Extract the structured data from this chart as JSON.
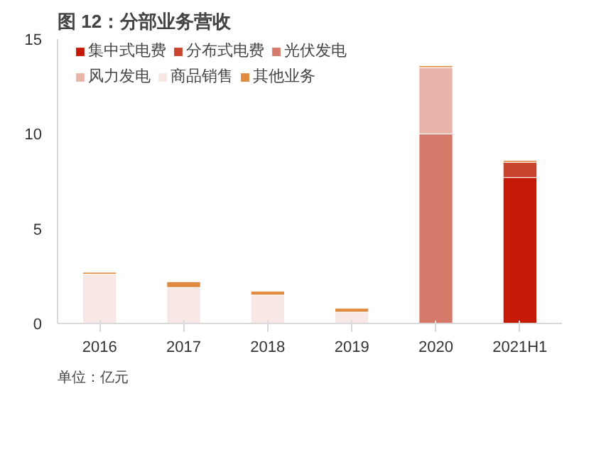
{
  "chart_data": {
    "type": "bar",
    "title": "图 12：分部业务营收",
    "stacked": true,
    "categories": [
      "2016",
      "2017",
      "2018",
      "2019",
      "2020",
      "2021H1"
    ],
    "series": [
      {
        "name": "集中式电费",
        "color": "#c41a05",
        "values": [
          null,
          null,
          null,
          null,
          null,
          7.7
        ]
      },
      {
        "name": "分布式电费",
        "color": "#c9442c",
        "values": [
          null,
          null,
          null,
          null,
          null,
          0.8
        ]
      },
      {
        "name": "光伏发电",
        "color": "#d57a6a",
        "values": [
          null,
          null,
          null,
          null,
          10.0,
          null
        ]
      },
      {
        "name": "风力发电",
        "color": "#e8b4aa",
        "values": [
          null,
          null,
          null,
          null,
          3.5,
          null
        ]
      },
      {
        "name": "商品销售",
        "color": "#f8e8e5",
        "values": [
          2.6,
          1.9,
          1.5,
          0.6,
          null,
          null
        ]
      },
      {
        "name": "其他业务",
        "color": "#e08a40",
        "values": [
          0.1,
          0.3,
          0.2,
          0.2,
          0.1,
          0.1
        ]
      }
    ],
    "ylim": [
      0,
      15
    ],
    "yticks": [
      0,
      5,
      10,
      15
    ],
    "grid": false,
    "legend": "top",
    "annotations": [
      "单位：亿元"
    ]
  }
}
